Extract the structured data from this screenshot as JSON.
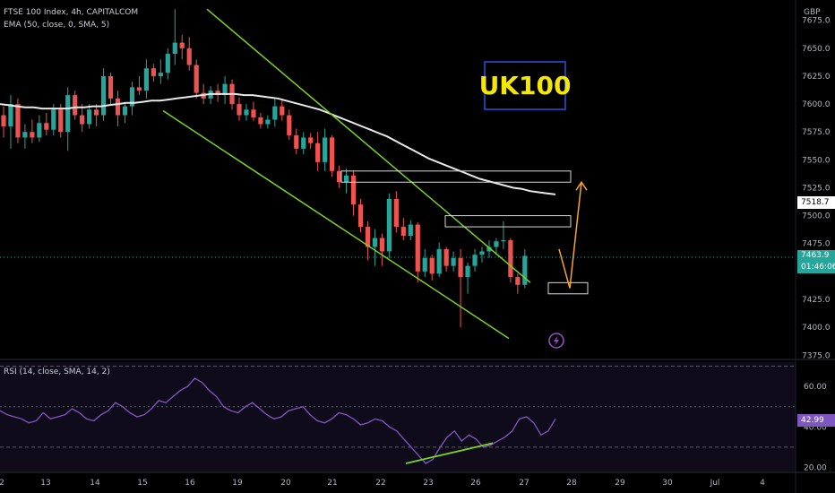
{
  "header": {
    "symbol_line": "FTSE 100 Index, 4h, CAPITALCOM",
    "ema_line": "EMA (50, close, 0, SMA, 5)",
    "rsi_line": "RSI (14, close, SMA, 14, 2)",
    "currency": "GBP"
  },
  "badge": {
    "text": "UK100"
  },
  "price_tags": {
    "ema_value": "7518.7",
    "last_price": "7463.9",
    "countdown": "01:46:06",
    "rsi_value": "42.99"
  },
  "colors": {
    "up": "#26a69a",
    "down": "#ef5350",
    "ema": "#e8e8e8",
    "channel": "#7cd320",
    "arrow": "#f7a531",
    "rsi": "#7e57c2",
    "badge_text": "#f5e800",
    "badge_border": "#1f3fa8"
  },
  "chart_data": [
    {
      "type": "candlestick",
      "title": "FTSE 100 Index, 4h, CAPITALCOM",
      "y_axis_labels": [
        "7675.0",
        "7650.0",
        "7625.0",
        "7600.0",
        "7575.0",
        "7550.0",
        "7525.0",
        "7500.0",
        "7475.0",
        "7425.0",
        "7400.0",
        "7375.0"
      ],
      "ylim": [
        7372,
        7690
      ],
      "x_axis_labels": [
        "2",
        "13",
        "14",
        "15",
        "16",
        "19",
        "20",
        "21",
        "22",
        "23",
        "26",
        "27",
        "28",
        "29",
        "30",
        "Jul",
        "4"
      ],
      "candles": [
        {
          "o": 7590,
          "h": 7598,
          "l": 7570,
          "c": 7580
        },
        {
          "o": 7580,
          "h": 7608,
          "l": 7560,
          "c": 7600
        },
        {
          "o": 7600,
          "h": 7605,
          "l": 7565,
          "c": 7570
        },
        {
          "o": 7570,
          "h": 7582,
          "l": 7560,
          "c": 7575
        },
        {
          "o": 7575,
          "h": 7586,
          "l": 7565,
          "c": 7570
        },
        {
          "o": 7570,
          "h": 7590,
          "l": 7566,
          "c": 7583
        },
        {
          "o": 7583,
          "h": 7592,
          "l": 7572,
          "c": 7577
        },
        {
          "o": 7577,
          "h": 7600,
          "l": 7572,
          "c": 7595
        },
        {
          "o": 7595,
          "h": 7600,
          "l": 7570,
          "c": 7575
        },
        {
          "o": 7575,
          "h": 7615,
          "l": 7558,
          "c": 7608
        },
        {
          "o": 7608,
          "h": 7612,
          "l": 7586,
          "c": 7590
        },
        {
          "o": 7590,
          "h": 7600,
          "l": 7575,
          "c": 7582
        },
        {
          "o": 7582,
          "h": 7600,
          "l": 7578,
          "c": 7595
        },
        {
          "o": 7595,
          "h": 7600,
          "l": 7580,
          "c": 7590
        },
        {
          "o": 7590,
          "h": 7632,
          "l": 7585,
          "c": 7625
        },
        {
          "o": 7625,
          "h": 7628,
          "l": 7600,
          "c": 7605
        },
        {
          "o": 7605,
          "h": 7612,
          "l": 7580,
          "c": 7590
        },
        {
          "o": 7590,
          "h": 7602,
          "l": 7583,
          "c": 7598
        },
        {
          "o": 7598,
          "h": 7620,
          "l": 7590,
          "c": 7615
        },
        {
          "o": 7615,
          "h": 7625,
          "l": 7608,
          "c": 7612
        },
        {
          "o": 7612,
          "h": 7640,
          "l": 7605,
          "c": 7632
        },
        {
          "o": 7632,
          "h": 7636,
          "l": 7620,
          "c": 7625
        },
        {
          "o": 7625,
          "h": 7640,
          "l": 7618,
          "c": 7628
        },
        {
          "o": 7628,
          "h": 7650,
          "l": 7622,
          "c": 7645
        },
        {
          "o": 7645,
          "h": 7685,
          "l": 7635,
          "c": 7655
        },
        {
          "o": 7655,
          "h": 7662,
          "l": 7640,
          "c": 7650
        },
        {
          "o": 7650,
          "h": 7660,
          "l": 7630,
          "c": 7635
        },
        {
          "o": 7635,
          "h": 7640,
          "l": 7605,
          "c": 7610
        },
        {
          "o": 7610,
          "h": 7618,
          "l": 7600,
          "c": 7605
        },
        {
          "o": 7605,
          "h": 7616,
          "l": 7600,
          "c": 7612
        },
        {
          "o": 7612,
          "h": 7618,
          "l": 7602,
          "c": 7608
        },
        {
          "o": 7608,
          "h": 7625,
          "l": 7600,
          "c": 7618
        },
        {
          "o": 7618,
          "h": 7622,
          "l": 7595,
          "c": 7600
        },
        {
          "o": 7600,
          "h": 7606,
          "l": 7585,
          "c": 7590
        },
        {
          "o": 7590,
          "h": 7600,
          "l": 7585,
          "c": 7595
        },
        {
          "o": 7595,
          "h": 7602,
          "l": 7585,
          "c": 7588
        },
        {
          "o": 7588,
          "h": 7592,
          "l": 7578,
          "c": 7582
        },
        {
          "o": 7582,
          "h": 7590,
          "l": 7578,
          "c": 7586
        },
        {
          "o": 7586,
          "h": 7605,
          "l": 7580,
          "c": 7598
        },
        {
          "o": 7598,
          "h": 7604,
          "l": 7585,
          "c": 7590
        },
        {
          "o": 7590,
          "h": 7595,
          "l": 7568,
          "c": 7572
        },
        {
          "o": 7572,
          "h": 7578,
          "l": 7555,
          "c": 7560
        },
        {
          "o": 7560,
          "h": 7575,
          "l": 7555,
          "c": 7570
        },
        {
          "o": 7570,
          "h": 7574,
          "l": 7560,
          "c": 7565
        },
        {
          "o": 7565,
          "h": 7575,
          "l": 7540,
          "c": 7548
        },
        {
          "o": 7548,
          "h": 7578,
          "l": 7540,
          "c": 7570
        },
        {
          "o": 7570,
          "h": 7572,
          "l": 7535,
          "c": 7540
        },
        {
          "o": 7540,
          "h": 7545,
          "l": 7525,
          "c": 7530
        },
        {
          "o": 7530,
          "h": 7542,
          "l": 7520,
          "c": 7536
        },
        {
          "o": 7536,
          "h": 7540,
          "l": 7500,
          "c": 7510
        },
        {
          "o": 7510,
          "h": 7515,
          "l": 7485,
          "c": 7490
        },
        {
          "o": 7490,
          "h": 7495,
          "l": 7460,
          "c": 7472
        },
        {
          "o": 7472,
          "h": 7488,
          "l": 7455,
          "c": 7480
        },
        {
          "o": 7480,
          "h": 7484,
          "l": 7455,
          "c": 7468
        },
        {
          "o": 7468,
          "h": 7520,
          "l": 7462,
          "c": 7515
        },
        {
          "o": 7515,
          "h": 7522,
          "l": 7485,
          "c": 7490
        },
        {
          "o": 7490,
          "h": 7498,
          "l": 7478,
          "c": 7482
        },
        {
          "o": 7482,
          "h": 7496,
          "l": 7478,
          "c": 7492
        },
        {
          "o": 7492,
          "h": 7494,
          "l": 7440,
          "c": 7450
        },
        {
          "o": 7450,
          "h": 7470,
          "l": 7445,
          "c": 7462
        },
        {
          "o": 7462,
          "h": 7465,
          "l": 7442,
          "c": 7448
        },
        {
          "o": 7448,
          "h": 7476,
          "l": 7445,
          "c": 7470
        },
        {
          "o": 7470,
          "h": 7472,
          "l": 7450,
          "c": 7455
        },
        {
          "o": 7455,
          "h": 7468,
          "l": 7450,
          "c": 7462
        },
        {
          "o": 7462,
          "h": 7470,
          "l": 7400,
          "c": 7445
        },
        {
          "o": 7445,
          "h": 7458,
          "l": 7430,
          "c": 7455
        },
        {
          "o": 7455,
          "h": 7470,
          "l": 7450,
          "c": 7465
        },
        {
          "o": 7465,
          "h": 7472,
          "l": 7458,
          "c": 7468
        },
        {
          "o": 7468,
          "h": 7478,
          "l": 7462,
          "c": 7472
        },
        {
          "o": 7472,
          "h": 7480,
          "l": 7465,
          "c": 7477
        },
        {
          "o": 7477,
          "h": 7495,
          "l": 7470,
          "c": 7478
        },
        {
          "o": 7478,
          "h": 7480,
          "l": 7440,
          "c": 7445
        },
        {
          "o": 7445,
          "h": 7448,
          "l": 7430,
          "c": 7438
        },
        {
          "o": 7438,
          "h": 7470,
          "l": 7435,
          "c": 7464
        }
      ],
      "ema50": [
        7600,
        7599,
        7598,
        7597,
        7597,
        7596,
        7596,
        7596,
        7596,
        7597,
        7597,
        7598,
        7598,
        7599,
        7600,
        7601,
        7601,
        7602,
        7603,
        7603,
        7604,
        7605,
        7606,
        7607,
        7608,
        7609,
        7609,
        7609,
        7609,
        7608,
        7608,
        7607,
        7606,
        7605,
        7603,
        7601,
        7599,
        7597,
        7595,
        7592,
        7589,
        7586,
        7583,
        7580,
        7577,
        7574,
        7571,
        7567,
        7563,
        7559,
        7555,
        7551,
        7548,
        7545,
        7542,
        7539,
        7536,
        7533,
        7531,
        7529,
        7527,
        7525,
        7524,
        7522,
        7521,
        7520,
        7519
      ],
      "annotations": {
        "channel_upper": [
          [
            16.2,
            7685
          ],
          [
            27.0,
            7440
          ]
        ],
        "channel_lower": [
          [
            15.5,
            7590
          ],
          [
            27.5,
            7390
          ]
        ],
        "zones": [
          [
            7530,
            7540
          ],
          [
            7490,
            7500
          ],
          [
            7430,
            7440
          ]
        ],
        "projection_arrow": [
          [
            7435
          ],
          [
            7535
          ]
        ]
      }
    },
    {
      "type": "line",
      "title": "RSI (14, close, SMA, 14, 2)",
      "y_axis_labels": [
        "60.00",
        "40.00",
        "20.00"
      ],
      "ylim": [
        18,
        72
      ],
      "bands": [
        70,
        50,
        30
      ],
      "values": [
        48,
        46,
        45,
        44,
        42,
        43,
        47,
        44,
        45,
        46,
        49,
        47,
        44,
        43,
        46,
        48,
        52,
        50,
        47,
        45,
        46,
        49,
        53,
        52,
        55,
        58,
        60,
        64,
        62,
        58,
        55,
        50,
        48,
        47,
        50,
        52,
        49,
        46,
        44,
        45,
        48,
        49,
        50,
        46,
        43,
        42,
        44,
        47,
        46,
        44,
        41,
        42,
        44,
        43,
        40,
        38,
        34,
        30,
        26,
        22,
        24,
        30,
        35,
        38,
        33,
        36,
        34,
        30,
        31,
        33,
        35,
        38,
        44,
        45,
        42,
        36,
        38,
        44
      ]
    }
  ]
}
